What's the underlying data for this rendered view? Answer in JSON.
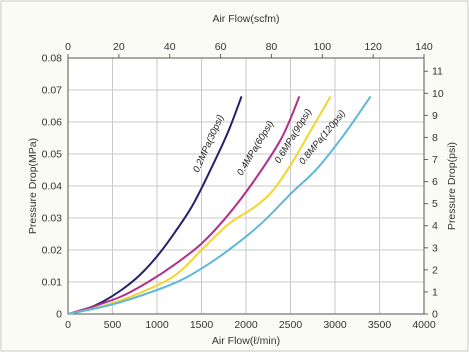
{
  "chart_data": {
    "type": "line",
    "title": "",
    "xlabel_bottom": "Air Flow(ℓ/min)",
    "xlabel_top": "Air Flow(scfm)",
    "ylabel_left": "Pressure Drop(MPa)",
    "ylabel_right": "Pressure Drop(psi)",
    "x_bottom_range": [
      0,
      4000
    ],
    "x_bottom_ticks": [
      "0",
      "500",
      "1000",
      "1500",
      "2000",
      "2500",
      "3000",
      "3500",
      "4000"
    ],
    "x_top_range": [
      0,
      140
    ],
    "x_top_ticks": [
      "0",
      "20",
      "40",
      "60",
      "80",
      "100",
      "120",
      "140"
    ],
    "y_left_range": [
      0,
      0.08
    ],
    "y_left_ticks": [
      "0",
      "0.01",
      "0.02",
      "0.03",
      "0.04",
      "0.05",
      "0.06",
      "0.07",
      "0.08"
    ],
    "y_right_range": [
      0,
      11.6
    ],
    "y_right_ticks": [
      "0",
      "1",
      "2",
      "3",
      "4",
      "5",
      "6",
      "7",
      "8",
      "9",
      "10",
      "11"
    ],
    "grid": true,
    "series": [
      {
        "name": "0.2MPa(30psi)",
        "color": "#22226a",
        "x": [
          0,
          200,
          400,
          600,
          800,
          1000,
          1200,
          1400,
          1600,
          1800,
          1950
        ],
        "y": [
          0,
          0.0015,
          0.004,
          0.0075,
          0.012,
          0.018,
          0.0255,
          0.034,
          0.045,
          0.057,
          0.068
        ]
      },
      {
        "name": "0.4MPa(60psi)",
        "color": "#b0308a",
        "x": [
          0,
          300,
          600,
          900,
          1200,
          1500,
          1800,
          2100,
          2400,
          2600
        ],
        "y": [
          0,
          0.0025,
          0.0055,
          0.01,
          0.0155,
          0.022,
          0.031,
          0.042,
          0.055,
          0.068
        ]
      },
      {
        "name": "0.6MPa(90psi)",
        "color": "#f2d630",
        "x": [
          0,
          400,
          800,
          1200,
          1500,
          1800,
          2100,
          2300,
          2500,
          2700,
          2950
        ],
        "y": [
          0,
          0.0025,
          0.0065,
          0.012,
          0.02,
          0.028,
          0.0335,
          0.0385,
          0.0465,
          0.056,
          0.068
        ]
      },
      {
        "name": "0.8MPa(120psi)",
        "color": "#5fb8d8",
        "x": [
          0,
          500,
          1000,
          1300,
          1600,
          1900,
          2200,
          2500,
          2800,
          3100,
          3400
        ],
        "y": [
          0,
          0.003,
          0.0075,
          0.011,
          0.016,
          0.022,
          0.029,
          0.0375,
          0.0455,
          0.056,
          0.068
        ]
      }
    ]
  }
}
